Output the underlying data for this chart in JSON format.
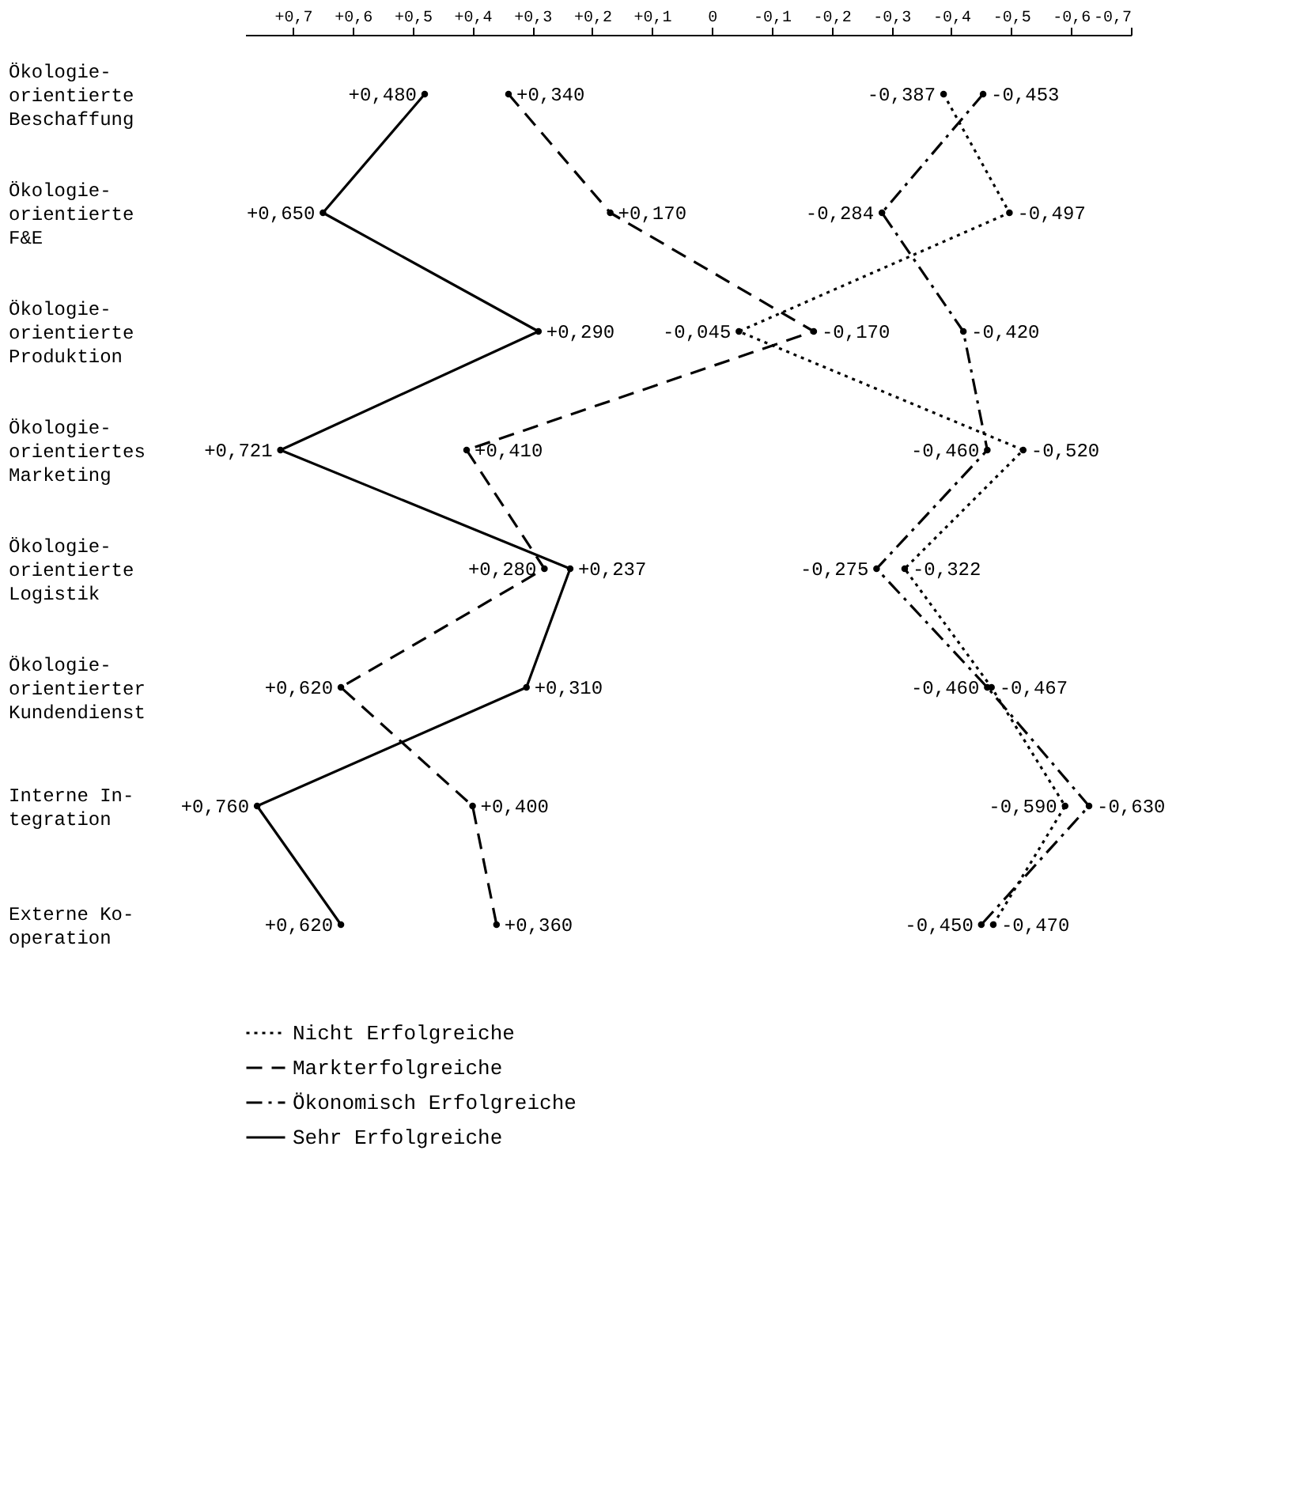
{
  "chart_data": {
    "type": "line",
    "orientation": "horizontal",
    "categories": [
      "Ökologie-\norientierte\nBeschaffung",
      "Ökologie-\norientierte\nF&E",
      "Ökologie-\norientierte\nProduktion",
      "Ökologie-\norientiertes\nMarketing",
      "Ökologie-\norientierte\nLogistik",
      "Ökologie-\norientierter\nKundendienst",
      "Interne In-\ntegration",
      "Externe Ko-\noperation"
    ],
    "xlim": [
      0.78,
      -0.7
    ],
    "xticks": [
      {
        "value": 0.7,
        "label": "+0,7"
      },
      {
        "value": 0.6,
        "label": "+0,6"
      },
      {
        "value": 0.5,
        "label": "+0,5"
      },
      {
        "value": 0.4,
        "label": "+0,4"
      },
      {
        "value": 0.3,
        "label": "+0,3"
      },
      {
        "value": 0.2,
        "label": "+0,2"
      },
      {
        "value": 0.1,
        "label": "+0,1"
      },
      0,
      {
        "value": -0.1,
        "label": "-0,1"
      },
      {
        "value": -0.2,
        "label": "-0,2"
      },
      {
        "value": -0.3,
        "label": "-0,3"
      },
      {
        "value": -0.4,
        "label": "-0,4"
      },
      {
        "value": -0.5,
        "label": "-0,5"
      },
      {
        "value": -0.6,
        "label": "-0,6"
      },
      {
        "value": -0.7,
        "label": "-0,7"
      }
    ],
    "marker": "circle",
    "grid": false,
    "legend": "bottom",
    "series": [
      {
        "name": "Nicht Erfolgreiche",
        "color": "#000000",
        "line_style": "dotted",
        "values": [
          -0.387,
          -0.497,
          -0.045,
          -0.52,
          -0.322,
          -0.467,
          -0.59,
          -0.47
        ],
        "value_labels": [
          "-0,387",
          "-0,497",
          "-0,045",
          "-0,520",
          "-0,322",
          "-0,467",
          "-0,590",
          "-0,470"
        ]
      },
      {
        "name": "Markterfolgreiche",
        "color": "#000000",
        "line_style": "dashed",
        "values": [
          0.34,
          0.17,
          -0.17,
          0.41,
          0.28,
          0.62,
          0.4,
          0.36
        ],
        "value_labels": [
          "+0,340",
          "+0,170",
          "-0,170",
          "+0,410",
          "+0,280",
          "+0,620",
          "+0,400",
          "+0,360"
        ]
      },
      {
        "name": "Ökonomisch Erfolgreiche",
        "color": "#000000",
        "line_style": "dashdot",
        "values": [
          -0.453,
          -0.284,
          -0.42,
          -0.46,
          -0.275,
          -0.46,
          -0.63,
          -0.45
        ],
        "value_labels": [
          "-0,453",
          "-0,284",
          "-0,420",
          "-0,460",
          "-0,275",
          "-0,460",
          "-0,630",
          "-0,450"
        ]
      },
      {
        "name": "Sehr Erfolgreiche",
        "color": "#000000",
        "line_style": "solid",
        "values": [
          0.48,
          0.65,
          0.29,
          0.721,
          0.237,
          0.31,
          0.76,
          0.62
        ],
        "value_labels": [
          "+0,480",
          "+0,650",
          "+0,290",
          "+0,721",
          "+0,237",
          "+0,310",
          "+0,760",
          "+0,620"
        ]
      }
    ]
  }
}
